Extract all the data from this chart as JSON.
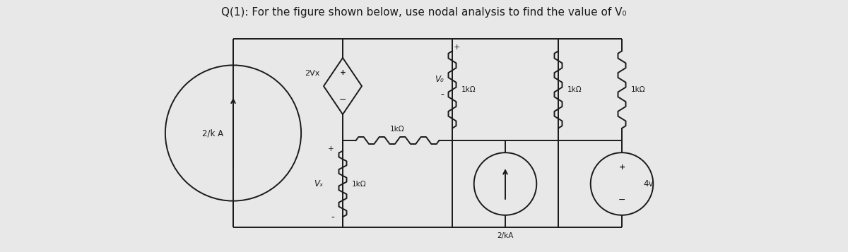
{
  "title": "Q(1): For the figure shown below, use nodal analysis to find the value of V₀",
  "bg_color": "#e8e8e8",
  "line_color": "#1a1a1a",
  "labels": {
    "left_cs": "2/k A",
    "diamond": "2Vx",
    "horiz_r": "1kΩ",
    "vo_plus": "+",
    "vo_minus": "-",
    "vo_label": "V₀",
    "mid_r": "1kΩ",
    "right_r1": "1kΩ",
    "right_r2": "1kΩ",
    "vx_plus": "+",
    "vx_minus": "-",
    "vx_label": "Vₓ",
    "vx_r": "1kΩ",
    "bot_cs": "2/kA",
    "volt_src": "4v",
    "top_plus": "+"
  }
}
